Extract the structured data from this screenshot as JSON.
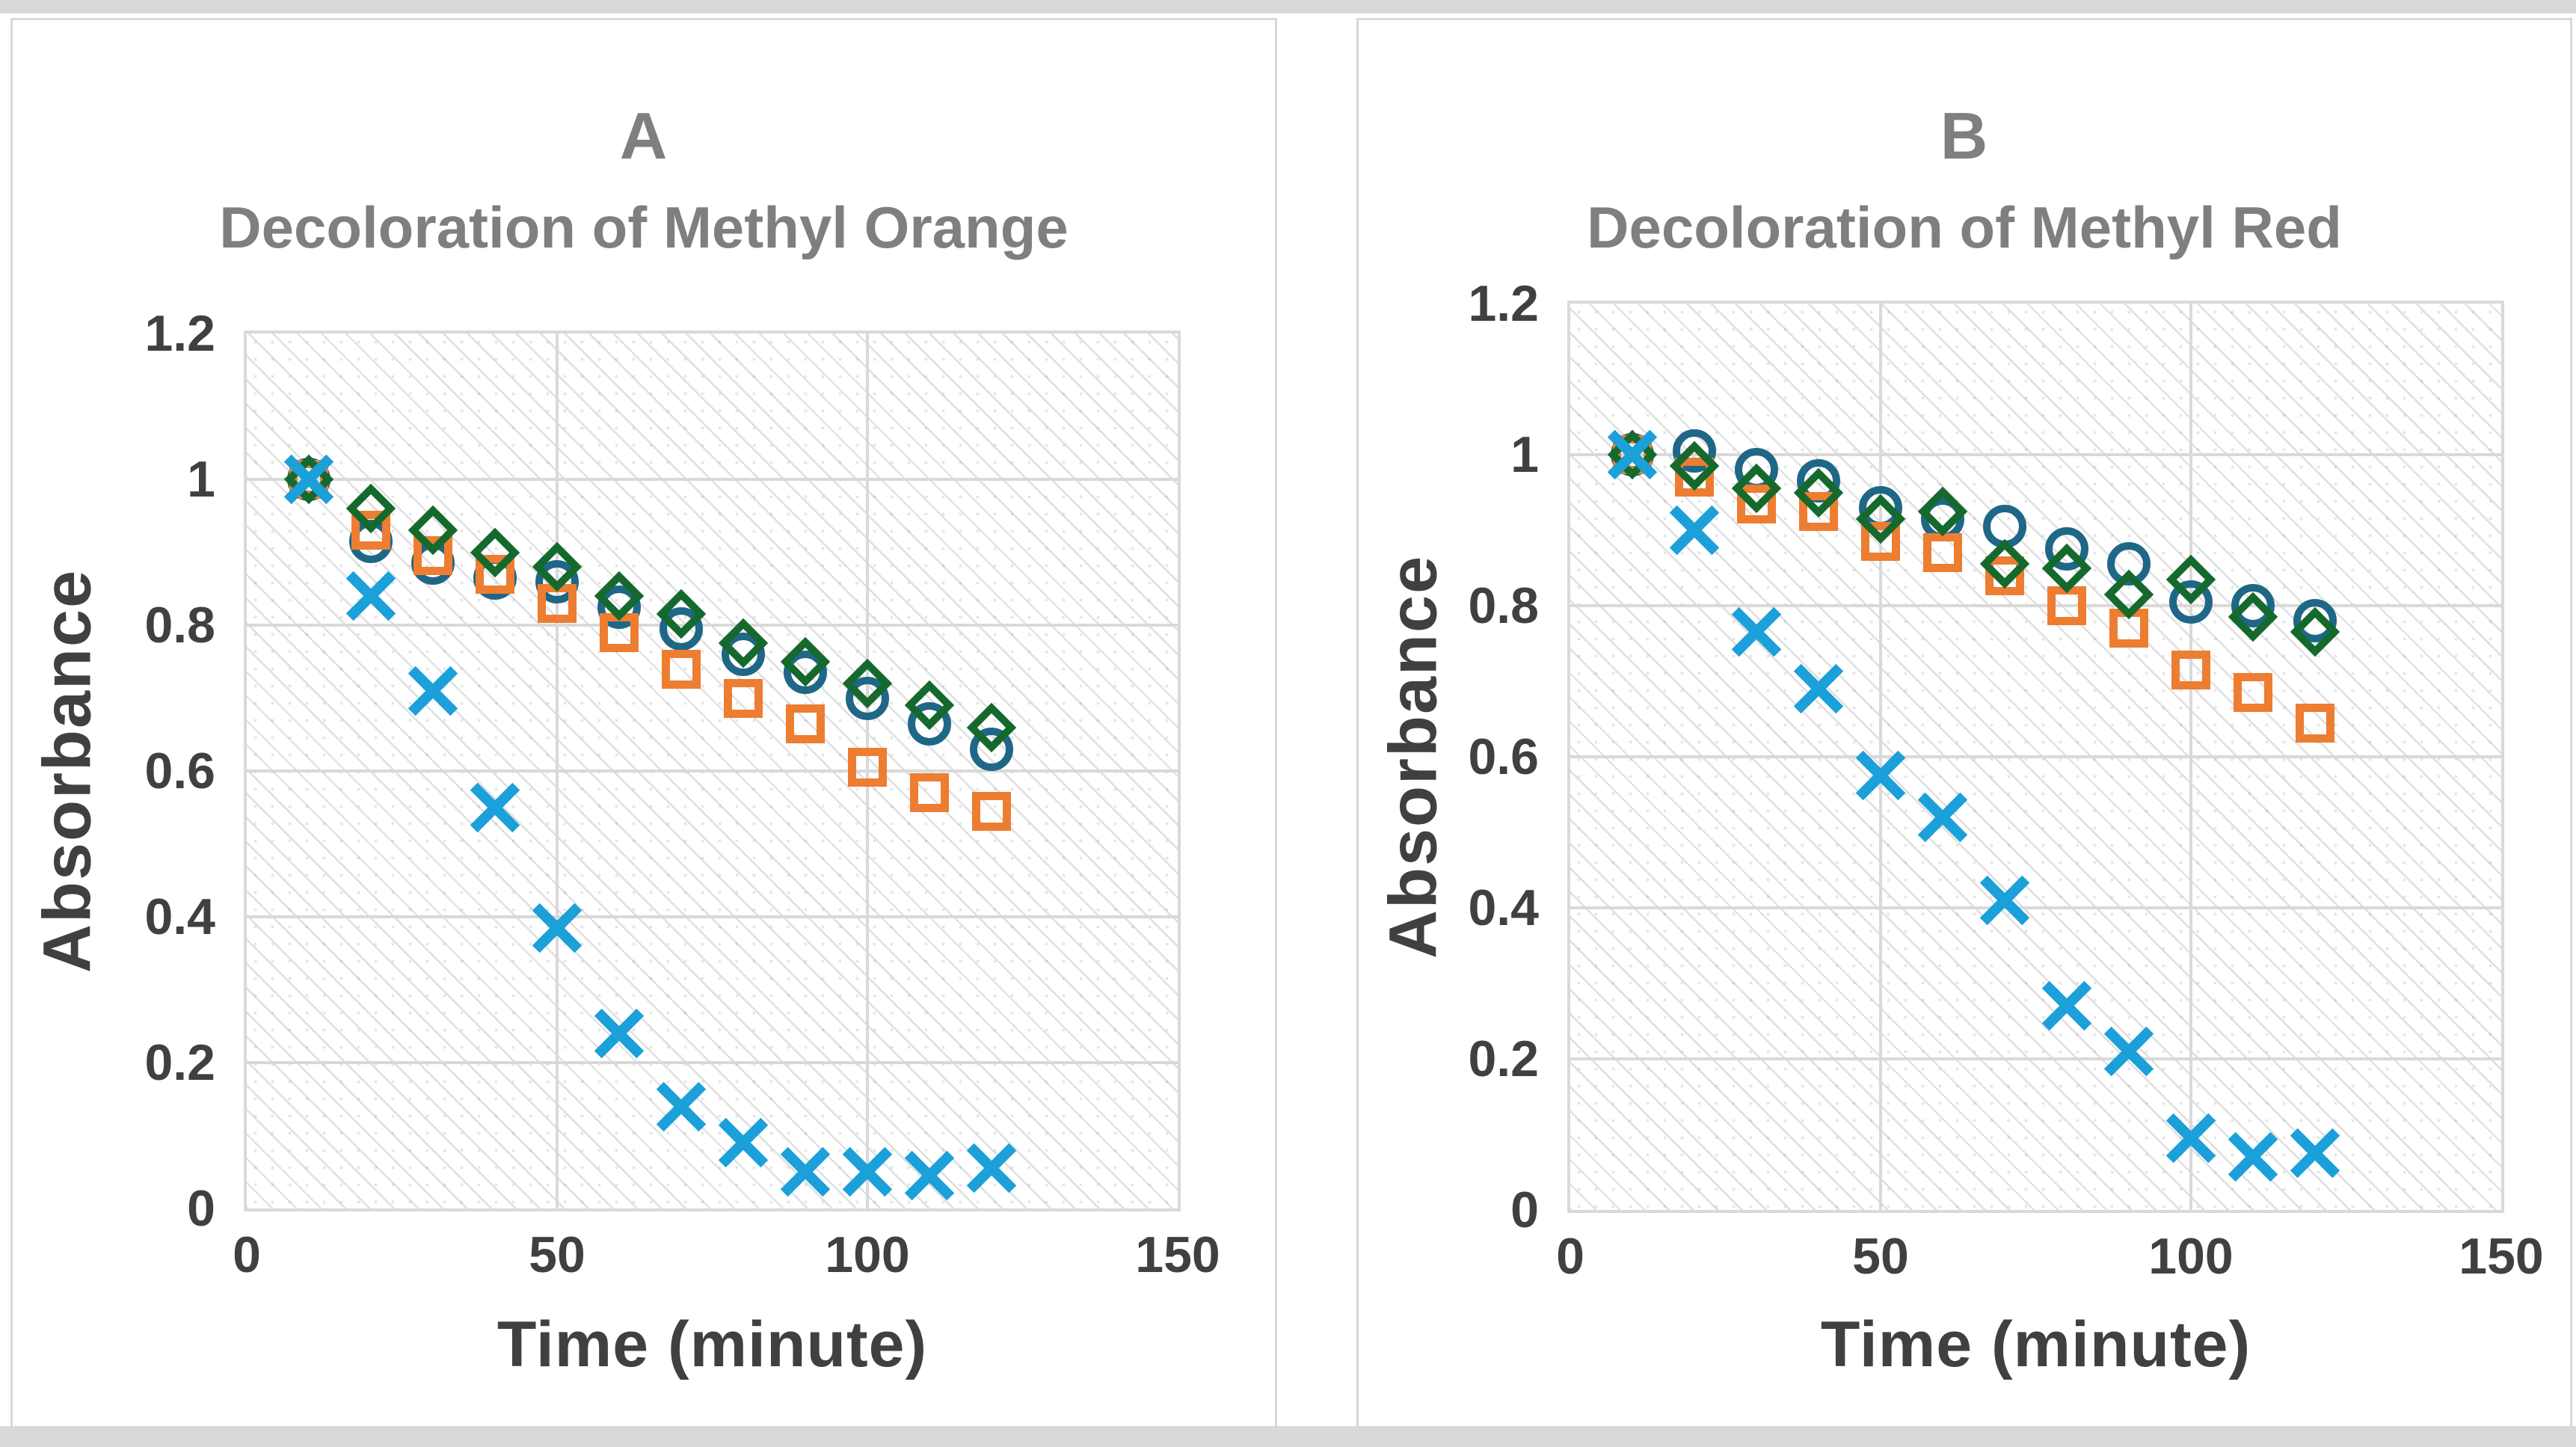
{
  "chart_data": [
    {
      "type": "scatter",
      "panel": "A",
      "title": "A",
      "subtitle": "Decoloration of Methyl Orange",
      "xlabel": "Time (minute)",
      "ylabel": "Absorbance",
      "grid": true,
      "legend": "none",
      "x_axis": {
        "min": 0,
        "max": 150,
        "ticks": [
          0,
          50,
          100,
          150
        ],
        "tick_labels": [
          "0",
          "50",
          "100",
          "150"
        ]
      },
      "y_axis": {
        "min": 0,
        "max": 1.2,
        "ticks": [
          1.2,
          1,
          0.8,
          0.6,
          0.4,
          0.2,
          0
        ],
        "tick_labels": [
          "1.2",
          "1",
          "0.8",
          "0.6",
          "0.4",
          "0.2",
          "0"
        ]
      },
      "x": [
        10,
        20,
        30,
        40,
        50,
        60,
        70,
        80,
        90,
        100,
        110,
        120
      ],
      "series": [
        {
          "name": "circle-marker-series",
          "marker": "circle",
          "color": "#1F6787",
          "values": [
            1.0,
            0.915,
            0.885,
            0.865,
            0.86,
            0.825,
            0.795,
            0.76,
            0.735,
            0.7,
            0.665,
            0.63
          ]
        },
        {
          "name": "square-marker-series",
          "marker": "square",
          "color": "#ED7D31",
          "values": [
            1.0,
            0.93,
            0.895,
            0.87,
            0.83,
            0.79,
            0.74,
            0.7,
            0.665,
            0.605,
            0.57,
            0.545
          ]
        },
        {
          "name": "diamond-marker-series",
          "marker": "diamond",
          "color": "#15692D",
          "values": [
            1.0,
            0.96,
            0.93,
            0.9,
            0.88,
            0.84,
            0.815,
            0.775,
            0.75,
            0.72,
            0.69,
            0.66
          ]
        },
        {
          "name": "x-marker-series",
          "marker": "x",
          "color": "#1BA0DA",
          "values": [
            1.0,
            0.84,
            0.71,
            0.55,
            0.385,
            0.24,
            0.14,
            0.09,
            0.05,
            0.05,
            0.045,
            0.055
          ]
        }
      ]
    },
    {
      "type": "scatter",
      "panel": "B",
      "title": "B",
      "subtitle": "Decoloration of Methyl Red",
      "xlabel": "Time (minute)",
      "ylabel": "Absorbance",
      "grid": true,
      "legend": "none",
      "x_axis": {
        "min": 0,
        "max": 150,
        "ticks": [
          0,
          50,
          100,
          150
        ],
        "tick_labels": [
          "0",
          "50",
          "100",
          "150"
        ]
      },
      "y_axis": {
        "min": 0,
        "max": 1.2,
        "ticks": [
          1.2,
          1,
          0.8,
          0.6,
          0.4,
          0.2,
          0
        ],
        "tick_labels": [
          "1.2",
          "1",
          "0.8",
          "0.6",
          "0.4",
          "0.2",
          "0"
        ]
      },
      "x": [
        10,
        20,
        30,
        40,
        50,
        60,
        70,
        80,
        90,
        100,
        110,
        120
      ],
      "series": [
        {
          "name": "circle-marker-series",
          "marker": "circle",
          "color": "#1F6787",
          "values": [
            1.0,
            1.005,
            0.98,
            0.965,
            0.93,
            0.915,
            0.905,
            0.875,
            0.855,
            0.805,
            0.8,
            0.78
          ]
        },
        {
          "name": "square-marker-series",
          "marker": "square",
          "color": "#ED7D31",
          "values": [
            1.0,
            0.97,
            0.935,
            0.925,
            0.885,
            0.87,
            0.84,
            0.8,
            0.77,
            0.715,
            0.685,
            0.645
          ]
        },
        {
          "name": "diamond-marker-series",
          "marker": "diamond",
          "color": "#15692D",
          "values": [
            1.0,
            0.985,
            0.955,
            0.95,
            0.915,
            0.925,
            0.855,
            0.85,
            0.815,
            0.835,
            0.785,
            0.765
          ]
        },
        {
          "name": "x-marker-series",
          "marker": "x",
          "color": "#1BA0DA",
          "values": [
            1.0,
            0.9,
            0.765,
            0.69,
            0.575,
            0.52,
            0.41,
            0.27,
            0.21,
            0.095,
            0.07,
            0.075
          ]
        }
      ]
    }
  ]
}
